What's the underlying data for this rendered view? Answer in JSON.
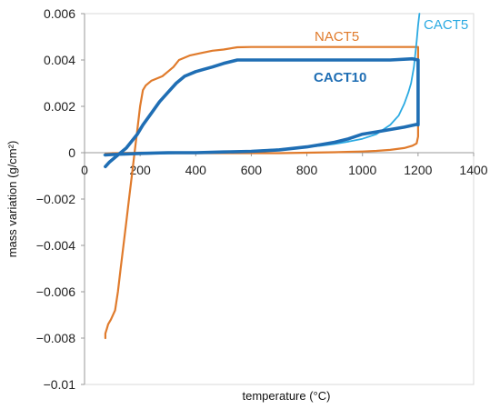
{
  "chart_data": {
    "type": "line",
    "xlabel": "temperature (°C)",
    "ylabel": "mass variation (g/cm²)",
    "xlim": [
      0,
      1400
    ],
    "ylim": [
      -0.01,
      0.006
    ],
    "x_ticks": [
      0,
      200,
      400,
      600,
      800,
      1000,
      1200,
      1400
    ],
    "y_ticks": [
      -0.01,
      -0.008,
      -0.006,
      -0.004,
      -0.002,
      0,
      0.002,
      0.004,
      0.006
    ],
    "x_tick_labels": [
      "0",
      "200",
      "400",
      "600",
      "800",
      "1000",
      "1200",
      "1400"
    ],
    "y_tick_labels": [
      "−0.01",
      "−0.008",
      "−0.006",
      "−0.004",
      "−0.002",
      "0",
      "0.002",
      "0.004",
      "0.006"
    ],
    "grid": false,
    "series": [
      {
        "name": "NACT5",
        "color": "#E07B2C",
        "label_style": "normal",
        "points": [
          [
            75,
            -0.008
          ],
          [
            75,
            -0.0078
          ],
          [
            80,
            -0.0076
          ],
          [
            85,
            -0.0074
          ],
          [
            95,
            -0.0072
          ],
          [
            110,
            -0.0068
          ],
          [
            120,
            -0.006
          ],
          [
            130,
            -0.005
          ],
          [
            140,
            -0.004
          ],
          [
            150,
            -0.003
          ],
          [
            160,
            -0.002
          ],
          [
            170,
            -0.001
          ],
          [
            180,
            0
          ],
          [
            190,
            0.001
          ],
          [
            200,
            0.002
          ],
          [
            210,
            0.0027
          ],
          [
            220,
            0.0029
          ],
          [
            240,
            0.0031
          ],
          [
            260,
            0.0032
          ],
          [
            280,
            0.0033
          ],
          [
            300,
            0.0035
          ],
          [
            320,
            0.0037
          ],
          [
            340,
            0.004
          ],
          [
            380,
            0.0042
          ],
          [
            420,
            0.0043
          ],
          [
            460,
            0.0044
          ],
          [
            500,
            0.00445
          ],
          [
            550,
            0.00455
          ],
          [
            600,
            0.00456
          ],
          [
            700,
            0.00456
          ],
          [
            800,
            0.00456
          ],
          [
            900,
            0.00456
          ],
          [
            1000,
            0.00456
          ],
          [
            1100,
            0.00456
          ],
          [
            1200,
            0.00456
          ],
          [
            1200,
            0.0035
          ],
          [
            1200,
            0.002
          ],
          [
            1200,
            0.001
          ],
          [
            1200,
            0.0007
          ],
          [
            1195,
            0.0004
          ],
          [
            1180,
            0.0003
          ],
          [
            1150,
            0.0002
          ],
          [
            1100,
            0.00012
          ],
          [
            1050,
            8e-05
          ],
          [
            1000,
            5e-05
          ],
          [
            900,
            2e-05
          ],
          [
            800,
            0.0
          ],
          [
            700,
            -2e-05
          ],
          [
            600,
            -2e-05
          ],
          [
            500,
            -2e-05
          ],
          [
            400,
            -2e-05
          ],
          [
            300,
            -2e-05
          ],
          [
            200,
            0
          ],
          [
            100,
            -2e-05
          ],
          [
            75,
            -5e-05
          ]
        ]
      },
      {
        "name": "CACT5",
        "color": "#2BAAE2",
        "label_style": "normal",
        "points": [
          [
            70,
            -0.0001
          ],
          [
            100,
            -8e-05
          ],
          [
            200,
            -5e-05
          ],
          [
            300,
            -3e-05
          ],
          [
            400,
            0
          ],
          [
            500,
            3e-05
          ],
          [
            600,
            8e-05
          ],
          [
            700,
            0.00015
          ],
          [
            800,
            0.00025
          ],
          [
            850,
            0.0003
          ],
          [
            900,
            0.00038
          ],
          [
            950,
            0.00048
          ],
          [
            1000,
            0.0006
          ],
          [
            1050,
            0.0008
          ],
          [
            1100,
            0.0012
          ],
          [
            1130,
            0.0016
          ],
          [
            1150,
            0.0021
          ],
          [
            1165,
            0.0026
          ],
          [
            1175,
            0.003
          ],
          [
            1185,
            0.0037
          ],
          [
            1195,
            0.0048
          ],
          [
            1200,
            0.0055
          ],
          [
            1205,
            0.006
          ]
        ]
      },
      {
        "name": "CACT10",
        "color": "#1F6EB4",
        "label_style": "bold",
        "points": [
          [
            75,
            -0.0006
          ],
          [
            90,
            -0.0004
          ],
          [
            110,
            -0.0002
          ],
          [
            130,
            0
          ],
          [
            150,
            0.0002
          ],
          [
            170,
            0.0005
          ],
          [
            190,
            0.0008
          ],
          [
            210,
            0.0012
          ],
          [
            240,
            0.0017
          ],
          [
            270,
            0.0022
          ],
          [
            300,
            0.0026
          ],
          [
            330,
            0.003
          ],
          [
            360,
            0.0033
          ],
          [
            400,
            0.0035
          ],
          [
            430,
            0.0036
          ],
          [
            460,
            0.0037
          ],
          [
            500,
            0.00385
          ],
          [
            550,
            0.004
          ],
          [
            600,
            0.004
          ],
          [
            700,
            0.004
          ],
          [
            800,
            0.004
          ],
          [
            900,
            0.004
          ],
          [
            1000,
            0.004
          ],
          [
            1100,
            0.004
          ],
          [
            1180,
            0.00405
          ],
          [
            1200,
            0.004
          ],
          [
            1200,
            0.0036
          ],
          [
            1200,
            0.003
          ],
          [
            1200,
            0.002
          ],
          [
            1200,
            0.0012
          ],
          [
            1195,
            0.00122
          ],
          [
            1150,
            0.0011
          ],
          [
            1100,
            0.001
          ],
          [
            1050,
            0.0009
          ],
          [
            1000,
            0.0008
          ],
          [
            950,
            0.0006
          ],
          [
            900,
            0.00045
          ],
          [
            850,
            0.00035
          ],
          [
            800,
            0.00025
          ],
          [
            700,
            0.00012
          ],
          [
            600,
            6e-05
          ],
          [
            500,
            3e-05
          ],
          [
            400,
            0
          ],
          [
            300,
            0
          ],
          [
            200,
            -3e-05
          ],
          [
            100,
            -8e-05
          ],
          [
            75,
            -0.0001
          ]
        ]
      }
    ]
  }
}
